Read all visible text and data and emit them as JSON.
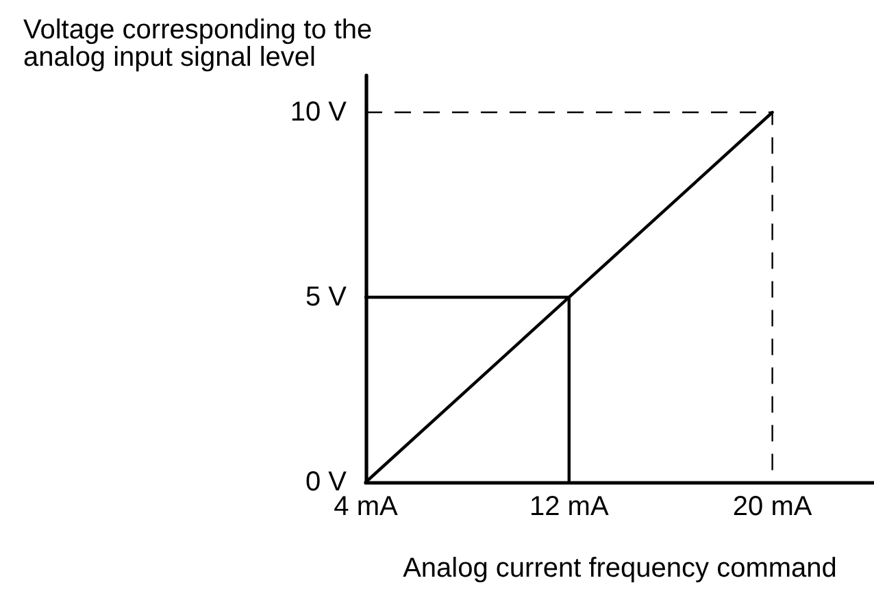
{
  "chart_data": {
    "type": "line",
    "xlabel": "Analog current frequency command",
    "ylabel": "Voltage corresponding to the analog input signal level",
    "xlim": [
      4,
      24
    ],
    "ylim": [
      0,
      11
    ],
    "xticks": [
      {
        "value": 4,
        "label": "4 mA"
      },
      {
        "value": 12,
        "label": "12 mA"
      },
      {
        "value": 20,
        "label": "20 mA"
      }
    ],
    "yticks": [
      {
        "value": 0,
        "label": "0 V"
      },
      {
        "value": 5,
        "label": "5 V"
      },
      {
        "value": 10,
        "label": "10 V"
      }
    ],
    "series": [
      {
        "x": [
          4,
          20
        ],
        "values": [
          0,
          10
        ],
        "color": "#000000"
      },
      {
        "x": [
          4,
          12,
          12
        ],
        "values": [
          5,
          5,
          0
        ],
        "color": "#000000"
      },
      {
        "x": [
          4,
          20,
          20
        ],
        "values": [
          10,
          10,
          0
        ],
        "color": "#000000",
        "line_style": "dashed"
      }
    ],
    "marker": "none",
    "line_style": "solid"
  }
}
